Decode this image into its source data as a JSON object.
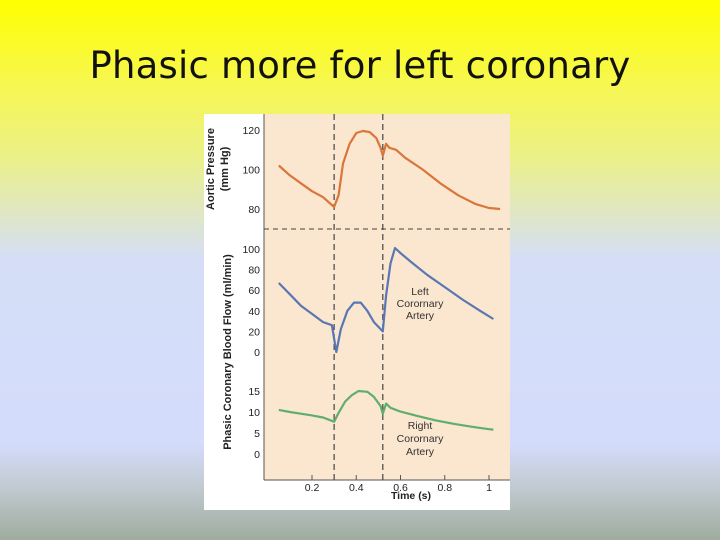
{
  "slide": {
    "title": "Phasic more for left coronary"
  },
  "chart_data": {
    "type": "line",
    "x": {
      "label": "Time (s)",
      "ticks": [
        "0.2",
        "0.4",
        "0.6",
        "0.8",
        "1"
      ],
      "range": [
        0,
        1.05
      ]
    },
    "markers": [
      0.3,
      0.52
    ],
    "panels": [
      {
        "id": "aortic",
        "ylabel_lines": [
          "Aortic Pressure",
          "(mm Hg)"
        ],
        "yticks": [
          "120",
          "100",
          "80"
        ],
        "range": [
          78,
          122
        ],
        "color": "#d9763a",
        "series": [
          {
            "name": "",
            "points": [
              [
                0.05,
                102
              ],
              [
                0.1,
                97
              ],
              [
                0.15,
                93
              ],
              [
                0.2,
                89
              ],
              [
                0.25,
                86
              ],
              [
                0.3,
                81
              ],
              [
                0.32,
                87
              ],
              [
                0.34,
                103
              ],
              [
                0.37,
                113
              ],
              [
                0.4,
                118.5
              ],
              [
                0.43,
                119.5
              ],
              [
                0.46,
                119
              ],
              [
                0.49,
                116
              ],
              [
                0.51,
                111
              ],
              [
                0.52,
                107
              ],
              [
                0.535,
                113
              ],
              [
                0.55,
                111
              ],
              [
                0.58,
                110
              ],
              [
                0.62,
                106
              ],
              [
                0.7,
                100
              ],
              [
                0.78,
                93
              ],
              [
                0.86,
                87
              ],
              [
                0.94,
                82.5
              ],
              [
                1.0,
                80.5
              ],
              [
                1.05,
                80
              ]
            ]
          }
        ]
      },
      {
        "id": "coronary",
        "ylabel_lines": [
          "Phasic Coronary Blood Flow (ml/min)"
        ],
        "yticks_left": [
          "100",
          "80",
          "60",
          "40",
          "20",
          "0"
        ],
        "yticks_right": [
          "15",
          "10",
          "5",
          "0"
        ],
        "left_color": "#5977b3",
        "right_color": "#5fae6f",
        "series": [
          {
            "name": "Left Coronary Artery",
            "label_lines": [
              "Left",
              "Corornary",
              "Artery"
            ],
            "axis": "left",
            "range": [
              0,
              100
            ],
            "points": [
              [
                0.05,
                67
              ],
              [
                0.1,
                56
              ],
              [
                0.15,
                45
              ],
              [
                0.2,
                37
              ],
              [
                0.25,
                29
              ],
              [
                0.29,
                26
              ],
              [
                0.3,
                13
              ],
              [
                0.31,
                0
              ],
              [
                0.33,
                22
              ],
              [
                0.36,
                40
              ],
              [
                0.39,
                48
              ],
              [
                0.42,
                48
              ],
              [
                0.45,
                40
              ],
              [
                0.48,
                29
              ],
              [
                0.52,
                20
              ],
              [
                0.535,
                55
              ],
              [
                0.555,
                86
              ],
              [
                0.575,
                101
              ],
              [
                0.6,
                96
              ],
              [
                0.65,
                87
              ],
              [
                0.72,
                75
              ],
              [
                0.8,
                63
              ],
              [
                0.88,
                51
              ],
              [
                0.96,
                40
              ],
              [
                1.02,
                32
              ]
            ]
          },
          {
            "name": "Right Coronary Artery",
            "label_lines": [
              "Right",
              "Corornary",
              "Artery"
            ],
            "axis": "right",
            "range": [
              0,
              15
            ],
            "points": [
              [
                0.05,
                10.5
              ],
              [
                0.1,
                10
              ],
              [
                0.15,
                9.6
              ],
              [
                0.2,
                9.2
              ],
              [
                0.25,
                8.7
              ],
              [
                0.3,
                7.7
              ],
              [
                0.32,
                9.8
              ],
              [
                0.35,
                12.5
              ],
              [
                0.38,
                14
              ],
              [
                0.41,
                15
              ],
              [
                0.45,
                14.8
              ],
              [
                0.48,
                13.6
              ],
              [
                0.51,
                11.4
              ],
              [
                0.52,
                9.6
              ],
              [
                0.535,
                12
              ],
              [
                0.555,
                11
              ],
              [
                0.6,
                10.1
              ],
              [
                0.68,
                9
              ],
              [
                0.76,
                8
              ],
              [
                0.84,
                7.2
              ],
              [
                0.92,
                6.5
              ],
              [
                1.0,
                5.9
              ],
              [
                1.02,
                5.8
              ]
            ]
          }
        ]
      }
    ]
  }
}
